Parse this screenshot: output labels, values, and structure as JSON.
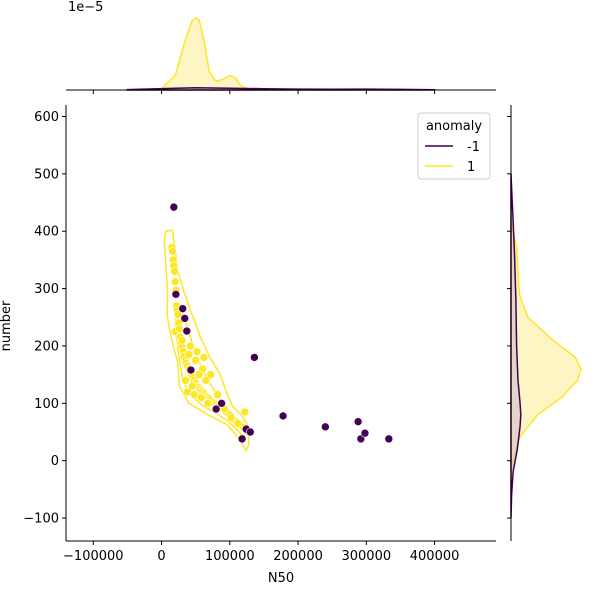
{
  "chart_data": {
    "type": "scatter",
    "title": "",
    "xlabel": "N50",
    "ylabel": "number",
    "xlim": [
      -140000,
      490000
    ],
    "ylim": [
      -140,
      620
    ],
    "x_ticks": [
      {
        "value": -100000,
        "label": "−100000"
      },
      {
        "value": 0,
        "label": "0"
      },
      {
        "value": 100000,
        "label": "100000"
      },
      {
        "value": 200000,
        "label": "200000"
      },
      {
        "value": 300000,
        "label": "300000"
      },
      {
        "value": 400000,
        "label": "400000"
      }
    ],
    "y_ticks": [
      {
        "value": -100,
        "label": "−100"
      },
      {
        "value": 0,
        "label": "0"
      },
      {
        "value": 100,
        "label": "100"
      },
      {
        "value": 200,
        "label": "200"
      },
      {
        "value": 300,
        "label": "300"
      },
      {
        "value": 400,
        "label": "400"
      },
      {
        "value": 500,
        "label": "500"
      },
      {
        "value": 600,
        "label": "600"
      }
    ],
    "top_axis_offset_label": "1e−5",
    "grid": false,
    "legend": {
      "title": "anomaly",
      "placement": "top-right",
      "entries": [
        {
          "label": "-1",
          "color": "#440154"
        },
        {
          "label": "1",
          "color": "#fde725"
        }
      ]
    },
    "colors": {
      "-1": "#440154",
      "1": "#fde725",
      "1_fill": "#fdf5c3"
    },
    "series": [
      {
        "name": "-1",
        "color": "#440154",
        "x": [
          18000,
          21000,
          31000,
          34000,
          37000,
          43000,
          80000,
          88000,
          118000,
          124000,
          130000,
          136000,
          178000,
          240000,
          288000,
          292000,
          298000,
          333000
        ],
        "y": [
          442,
          290,
          265,
          248,
          226,
          158,
          90,
          100,
          38,
          55,
          50,
          180,
          78,
          59,
          68,
          38,
          48,
          38
        ]
      },
      {
        "name": "1",
        "color": "#fde725",
        "x": [
          15000,
          16000,
          17000,
          18000,
          19000,
          20000,
          21000,
          22000,
          23000,
          24000,
          25000,
          20000,
          26000,
          27000,
          28000,
          30000,
          32000,
          33000,
          35000,
          36000,
          38000,
          40000,
          42000,
          44000,
          46000,
          48000,
          50000,
          52000,
          54000,
          56000,
          58000,
          60000,
          62000,
          64000,
          66000,
          68000,
          70000,
          72000,
          75000,
          78000,
          80000,
          83000,
          86000,
          90000,
          95000,
          100000,
          105000,
          110000,
          115000,
          120000,
          125000,
          30000,
          40000,
          50000,
          60000,
          35000,
          45000,
          55000,
          65000,
          38000,
          48000,
          58000,
          68000,
          42000,
          52000,
          62000,
          72000,
          82000,
          92000,
          102000,
          112000,
          122000
        ],
        "y": [
          372,
          365,
          350,
          340,
          330,
          312,
          297,
          270,
          262,
          255,
          240,
          225,
          230,
          215,
          205,
          198,
          190,
          182,
          175,
          170,
          165,
          160,
          155,
          150,
          145,
          140,
          135,
          130,
          128,
          125,
          122,
          120,
          118,
          115,
          112,
          110,
          108,
          105,
          102,
          100,
          98,
          95,
          92,
          90,
          85,
          80,
          72,
          68,
          62,
          58,
          52,
          210,
          185,
          175,
          160,
          140,
          130,
          150,
          140,
          120,
          115,
          110,
          100,
          200,
          190,
          180,
          150,
          115,
          90,
          75,
          65,
          85
        ]
      }
    ],
    "marginal_top": {
      "type": "kde",
      "series": [
        {
          "name": "1",
          "x": [
            0,
            20000,
            35000,
            45000,
            50000,
            55000,
            62000,
            70000,
            80000,
            90000,
            100000,
            108000,
            115000,
            125000,
            140000
          ],
          "density": [
            0.02,
            0.2,
            0.7,
            0.97,
            1.0,
            0.97,
            0.7,
            0.25,
            0.12,
            0.15,
            0.2,
            0.17,
            0.07,
            0.02,
            0.0
          ]
        },
        {
          "name": "-1",
          "x": [
            -50000,
            0,
            50000,
            100000,
            150000,
            200000,
            250000,
            300000,
            350000,
            400000
          ],
          "density": [
            0.005,
            0.02,
            0.03,
            0.025,
            0.018,
            0.012,
            0.01,
            0.012,
            0.008,
            0.003
          ]
        }
      ]
    },
    "marginal_right": {
      "type": "kde",
      "series": [
        {
          "name": "1",
          "y": [
            -20,
            0,
            40,
            80,
            110,
            140,
            160,
            180,
            210,
            250,
            290,
            330,
            370,
            400,
            420
          ],
          "density": [
            0.0,
            0.03,
            0.12,
            0.38,
            0.72,
            0.95,
            1.0,
            0.92,
            0.6,
            0.24,
            0.12,
            0.1,
            0.08,
            0.03,
            0.0
          ]
        },
        {
          "name": "-1",
          "y": [
            -100,
            -60,
            -20,
            20,
            60,
            80,
            100,
            140,
            200,
            280,
            360,
            420,
            460,
            500
          ],
          "density": [
            0.0,
            0.008,
            0.03,
            0.09,
            0.13,
            0.14,
            0.13,
            0.1,
            0.08,
            0.07,
            0.05,
            0.03,
            0.015,
            0.0
          ]
        }
      ]
    }
  }
}
